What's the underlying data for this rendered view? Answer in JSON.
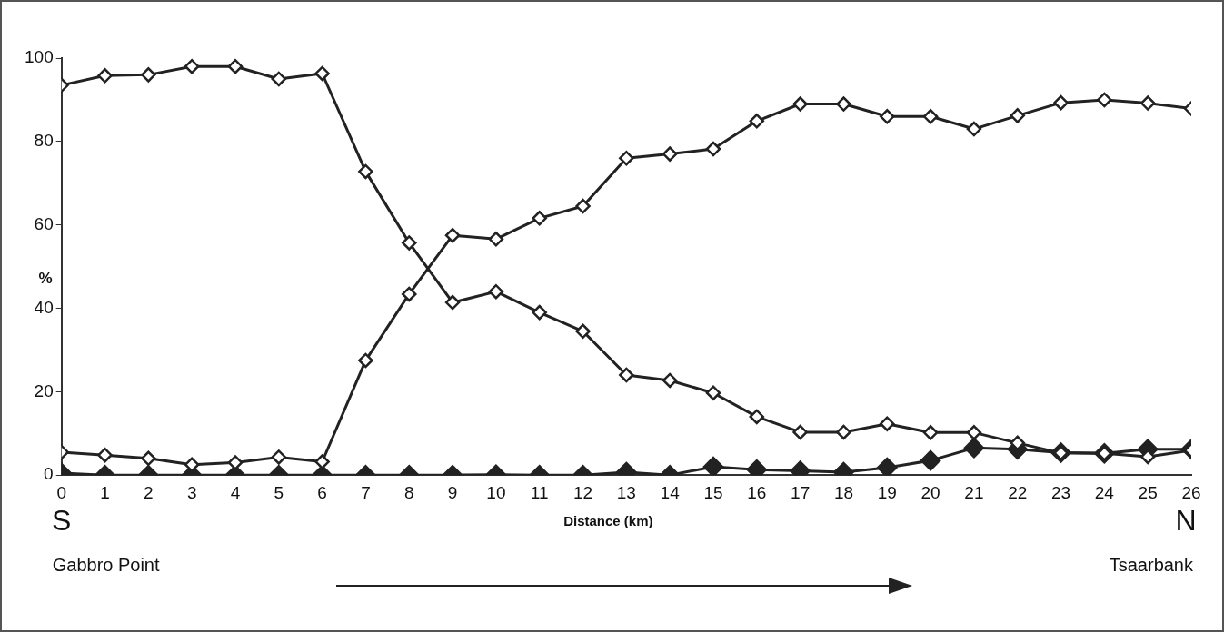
{
  "chart_data": {
    "type": "line",
    "xlabel": "Distance (km)",
    "ylabel": "%",
    "xlim": [
      0,
      26
    ],
    "xticks": [
      0,
      1,
      2,
      3,
      4,
      5,
      6,
      7,
      8,
      9,
      10,
      11,
      12,
      13,
      14,
      15,
      16,
      17,
      18,
      19,
      20,
      21,
      22,
      23,
      24,
      25,
      26
    ],
    "ylim": [
      0,
      100
    ],
    "yticks": [
      0,
      20,
      40,
      60,
      80,
      100
    ],
    "x": [
      0,
      1,
      2,
      3,
      4,
      5,
      6,
      7,
      8,
      9,
      10,
      11,
      12,
      13,
      14,
      15,
      16,
      17,
      18,
      19,
      20,
      21,
      22,
      23,
      24,
      25,
      26
    ],
    "series": [
      {
        "color": "#222222",
        "values": [
          93.5,
          95.8,
          96,
          98,
          98,
          95,
          96.3,
          72.8,
          55.7,
          41.4,
          44,
          39,
          34.5,
          24,
          22.7,
          19.7,
          14,
          10.3,
          10.3,
          12.3,
          10.2,
          10.2,
          7.7,
          5.3,
          5.2,
          4.4,
          5.9
        ]
      },
      {
        "color": "#222222",
        "values": [
          5.5,
          4.8,
          4,
          2.5,
          3,
          4.3,
          3.2,
          27.5,
          43.4,
          57.5,
          56.6,
          61.6,
          64.5,
          76,
          77,
          78.2,
          84.9,
          89,
          89,
          86,
          86,
          83,
          86.2,
          89.3,
          90,
          89.2,
          87.9
        ]
      },
      {
        "color": "#222222",
        "values": [
          0.5,
          0,
          0,
          0,
          0,
          0,
          0,
          0,
          0,
          0,
          0.1,
          0,
          0,
          0.7,
          0,
          2,
          1.3,
          1,
          0.7,
          1.8,
          3.5,
          6.5,
          6.2,
          5.4,
          5.2,
          6.2,
          6.2
        ]
      }
    ],
    "marker": "diamond",
    "line_style": "solid",
    "grid": false,
    "legend": false,
    "annotations": [
      "S",
      "Gabbro Point",
      "N",
      "Tsaarbank"
    ]
  }
}
